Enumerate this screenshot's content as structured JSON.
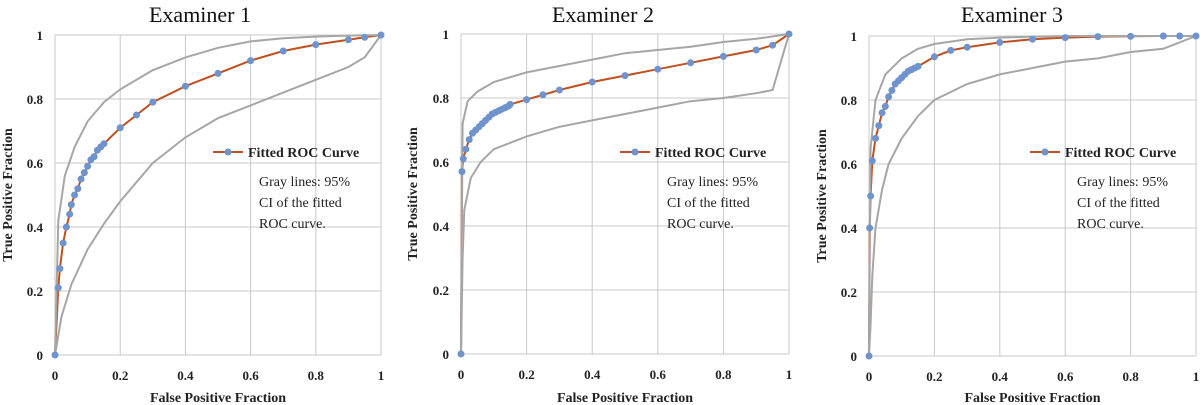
{
  "figure": {
    "note_lines": [
      "Gray lines: 95%",
      "CI of the fitted",
      "ROC curve."
    ]
  },
  "colors": {
    "fitted_line": "#c0501f",
    "points": "#6f93cc",
    "ci_lines": "#a6a6a6",
    "grid": "#c8c8c8"
  },
  "chart_data": [
    {
      "type": "line",
      "title": "Examiner 1",
      "xlabel": "False Positive Fraction",
      "ylabel": "True Positive Fraction",
      "xlim": [
        0,
        1
      ],
      "ylim": [
        0,
        1
      ],
      "xticks": [
        "0",
        "0.2",
        "0.4",
        "0.6",
        "0.8",
        "1"
      ],
      "yticks": [
        "0",
        "0.2",
        "0.4",
        "0.6",
        "0.8",
        "1"
      ],
      "grid": true,
      "legend": "right-middle",
      "series": [
        {
          "name": "Fitted ROC Curve",
          "x": [
            0,
            0.01,
            0.015,
            0.025,
            0.035,
            0.045,
            0.05,
            0.06,
            0.07,
            0.08,
            0.09,
            0.1,
            0.11,
            0.12,
            0.13,
            0.14,
            0.15,
            0.2,
            0.25,
            0.3,
            0.4,
            0.5,
            0.6,
            0.7,
            0.8,
            0.9,
            0.95,
            1.0
          ],
          "y": [
            0,
            0.21,
            0.27,
            0.35,
            0.4,
            0.44,
            0.47,
            0.5,
            0.52,
            0.55,
            0.57,
            0.59,
            0.61,
            0.62,
            0.64,
            0.65,
            0.66,
            0.71,
            0.75,
            0.79,
            0.84,
            0.88,
            0.92,
            0.95,
            0.97,
            0.985,
            0.993,
            1.0
          ]
        },
        {
          "x": [
            0,
            0.01,
            0.03,
            0.06,
            0.1,
            0.15,
            0.2,
            0.3,
            0.4,
            0.5,
            0.6,
            0.7,
            0.8,
            0.9,
            1.0
          ],
          "y": [
            0,
            0.42,
            0.56,
            0.65,
            0.73,
            0.79,
            0.83,
            0.89,
            0.93,
            0.96,
            0.98,
            0.99,
            0.995,
            0.998,
            1.0
          ]
        },
        {
          "x": [
            0,
            0.02,
            0.05,
            0.1,
            0.15,
            0.2,
            0.3,
            0.4,
            0.5,
            0.6,
            0.7,
            0.8,
            0.9,
            0.95,
            1.0
          ],
          "y": [
            0,
            0.12,
            0.22,
            0.33,
            0.41,
            0.48,
            0.6,
            0.68,
            0.74,
            0.78,
            0.82,
            0.86,
            0.9,
            0.93,
            1.0
          ]
        }
      ]
    },
    {
      "type": "line",
      "title": "Examiner 2",
      "xlabel": "False Positive Fraction",
      "ylabel": "True Positive Fraction",
      "xlim": [
        0,
        1
      ],
      "ylim": [
        0,
        1
      ],
      "xticks": [
        "0",
        "0.2",
        "0.4",
        "0.6",
        "0.8",
        "1"
      ],
      "yticks": [
        "0",
        "0.2",
        "0.4",
        "0.6",
        "0.8",
        "1"
      ],
      "grid": true,
      "legend": "right-middle",
      "series": [
        {
          "name": "Fitted ROC Curve",
          "x": [
            0,
            0.003,
            0.007,
            0.015,
            0.025,
            0.035,
            0.045,
            0.055,
            0.065,
            0.075,
            0.085,
            0.095,
            0.105,
            0.115,
            0.125,
            0.135,
            0.145,
            0.15,
            0.2,
            0.25,
            0.3,
            0.4,
            0.5,
            0.6,
            0.7,
            0.8,
            0.9,
            0.95,
            1.0
          ],
          "y": [
            0,
            0.57,
            0.61,
            0.64,
            0.67,
            0.69,
            0.7,
            0.71,
            0.72,
            0.73,
            0.74,
            0.75,
            0.755,
            0.76,
            0.765,
            0.77,
            0.775,
            0.78,
            0.795,
            0.81,
            0.825,
            0.85,
            0.87,
            0.89,
            0.91,
            0.93,
            0.95,
            0.965,
            1.0
          ]
        },
        {
          "x": [
            0,
            0.005,
            0.02,
            0.05,
            0.1,
            0.2,
            0.3,
            0.4,
            0.5,
            0.6,
            0.7,
            0.8,
            0.9,
            1.0
          ],
          "y": [
            0,
            0.72,
            0.79,
            0.82,
            0.85,
            0.88,
            0.9,
            0.92,
            0.94,
            0.95,
            0.96,
            0.975,
            0.985,
            1.0
          ]
        },
        {
          "x": [
            0,
            0.005,
            0.01,
            0.03,
            0.06,
            0.1,
            0.2,
            0.3,
            0.4,
            0.5,
            0.6,
            0.7,
            0.8,
            0.9,
            0.95,
            1.0
          ],
          "y": [
            0,
            0.3,
            0.45,
            0.55,
            0.6,
            0.64,
            0.68,
            0.71,
            0.73,
            0.75,
            0.77,
            0.79,
            0.8,
            0.815,
            0.825,
            1.0
          ]
        }
      ]
    },
    {
      "type": "line",
      "title": "Examiner 3",
      "xlabel": "False Positive Fraction",
      "ylabel": "True Positive Fraction",
      "xlim": [
        0,
        1
      ],
      "ylim": [
        0,
        1
      ],
      "xticks": [
        "0",
        "0.2",
        "0.4",
        "0.6",
        "0.8",
        "1"
      ],
      "yticks": [
        "0",
        "0.2",
        "0.4",
        "0.6",
        "0.8",
        "1"
      ],
      "grid": true,
      "legend": "right-middle",
      "series": [
        {
          "name": "Fitted ROC Curve",
          "x": [
            0,
            0.002,
            0.005,
            0.01,
            0.02,
            0.03,
            0.04,
            0.05,
            0.06,
            0.07,
            0.08,
            0.09,
            0.1,
            0.11,
            0.12,
            0.13,
            0.14,
            0.15,
            0.2,
            0.25,
            0.3,
            0.4,
            0.5,
            0.6,
            0.7,
            0.8,
            0.9,
            0.95,
            1.0
          ],
          "y": [
            0,
            0.4,
            0.5,
            0.61,
            0.68,
            0.72,
            0.76,
            0.78,
            0.81,
            0.83,
            0.85,
            0.86,
            0.87,
            0.88,
            0.89,
            0.895,
            0.9,
            0.905,
            0.935,
            0.955,
            0.965,
            0.98,
            0.99,
            0.995,
            0.998,
            0.999,
            1.0,
            1.0,
            1.0
          ]
        },
        {
          "x": [
            0,
            0.005,
            0.02,
            0.05,
            0.1,
            0.15,
            0.2,
            0.3,
            0.4,
            0.5,
            0.6,
            0.8,
            1.0
          ],
          "y": [
            0,
            0.65,
            0.8,
            0.88,
            0.93,
            0.96,
            0.975,
            0.99,
            0.995,
            0.998,
            1.0,
            1.0,
            1.0
          ]
        },
        {
          "x": [
            0,
            0.005,
            0.01,
            0.02,
            0.04,
            0.06,
            0.1,
            0.15,
            0.2,
            0.3,
            0.4,
            0.5,
            0.6,
            0.7,
            0.8,
            0.9,
            1.0
          ],
          "y": [
            0,
            0.1,
            0.25,
            0.4,
            0.52,
            0.6,
            0.68,
            0.75,
            0.8,
            0.85,
            0.88,
            0.9,
            0.92,
            0.93,
            0.95,
            0.96,
            1.0
          ]
        }
      ]
    }
  ]
}
